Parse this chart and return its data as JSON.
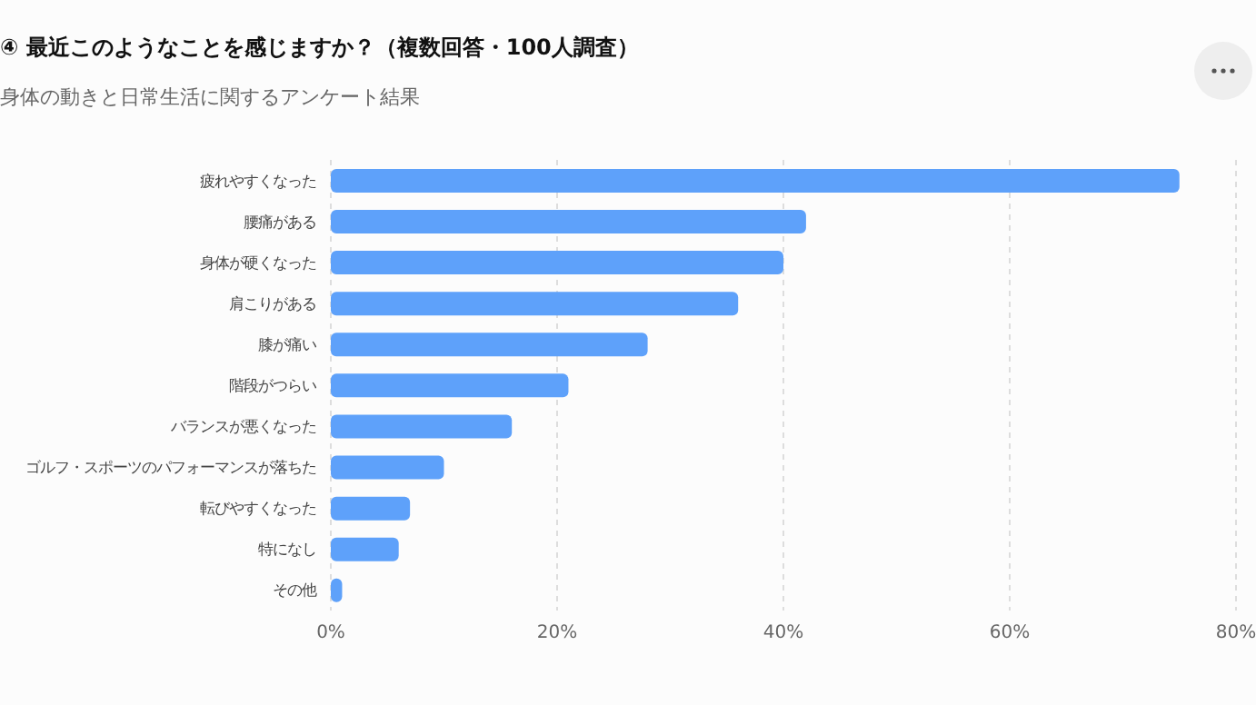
{
  "chart_data": {
    "type": "bar",
    "orientation": "horizontal",
    "title": "④ 最近このようなことを感じますか？（複数回答・100人調査）",
    "subtitle": "身体の動きと日常生活に関するアンケート結果",
    "categories": [
      "疲れやすくなった",
      "腰痛がある",
      "身体が硬くなった",
      "肩こりがある",
      "膝が痛い",
      "階段がつらい",
      "バランスが悪くなった",
      "ゴルフ・スポーツのパフォーマンスが落ちた",
      "転びやすくなった",
      "特になし",
      "その他"
    ],
    "values": [
      75,
      42,
      40,
      36,
      28,
      21,
      16,
      10,
      7,
      6,
      1
    ],
    "color": "#5ea1fa",
    "xlim": [
      0,
      80
    ],
    "xticks": [
      {
        "value": 0,
        "label": "0%"
      },
      {
        "value": 20,
        "label": "20%"
      },
      {
        "value": 40,
        "label": "40%"
      },
      {
        "value": 60,
        "label": "60%"
      },
      {
        "value": 80,
        "label": "80%"
      }
    ],
    "grid": "x"
  }
}
